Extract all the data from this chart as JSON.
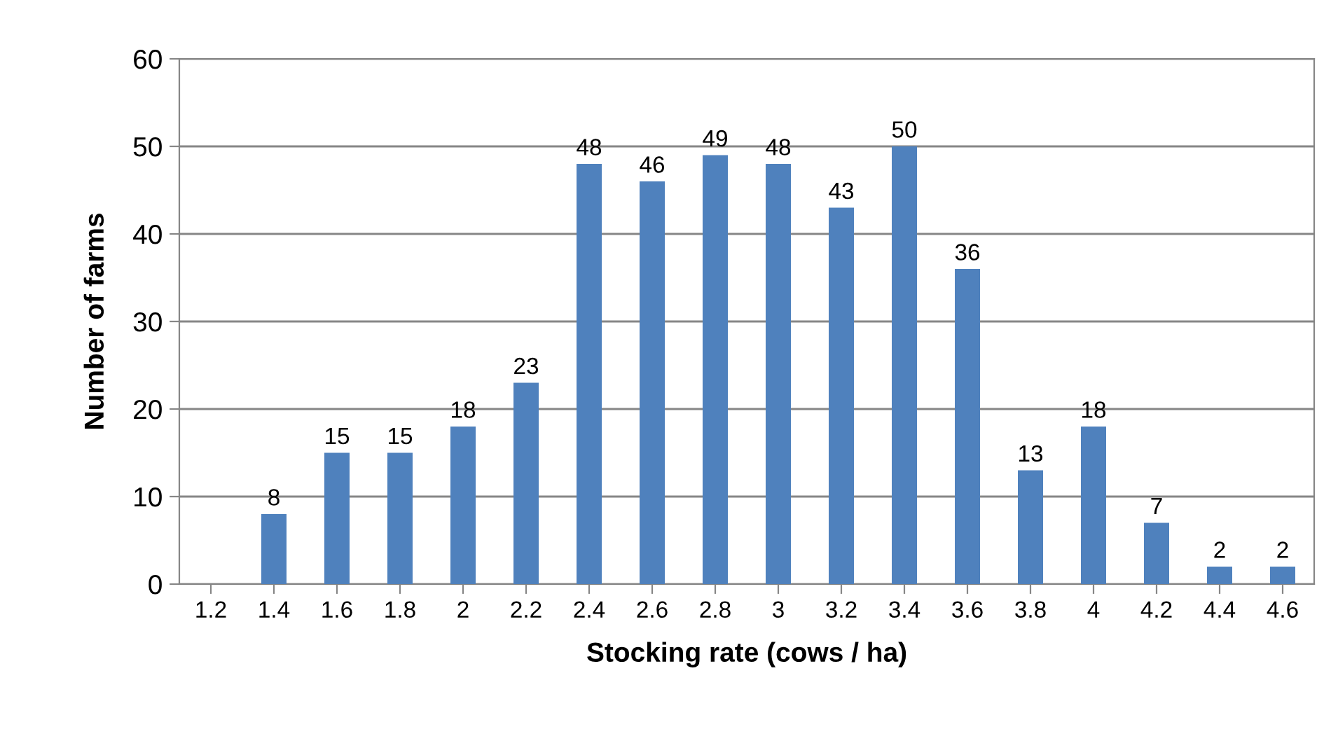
{
  "chart_data": {
    "type": "bar",
    "xlabel": "Stocking rate (cows / ha)",
    "ylabel": "Number of farms",
    "categories": [
      "1.2",
      "1.4",
      "1.6",
      "1.8",
      "2",
      "2.2",
      "2.4",
      "2.6",
      "2.8",
      "3",
      "3.2",
      "3.4",
      "3.6",
      "3.8",
      "4",
      "4.2",
      "4.4",
      "4.6"
    ],
    "values": [
      0,
      8,
      15,
      15,
      18,
      23,
      48,
      46,
      49,
      48,
      43,
      50,
      36,
      13,
      18,
      7,
      2,
      2
    ],
    "value_labels": [
      null,
      "8",
      "15",
      "15",
      "18",
      "23",
      "48",
      "46",
      "49",
      "48",
      "43",
      "50",
      "36",
      "13",
      "18",
      "7",
      "2",
      "2"
    ],
    "color": "#4f81bd",
    "ylim": [
      0,
      60
    ],
    "yticks": [
      0,
      10,
      20,
      30,
      40,
      50,
      60
    ],
    "grid": "y",
    "legend": false
  }
}
